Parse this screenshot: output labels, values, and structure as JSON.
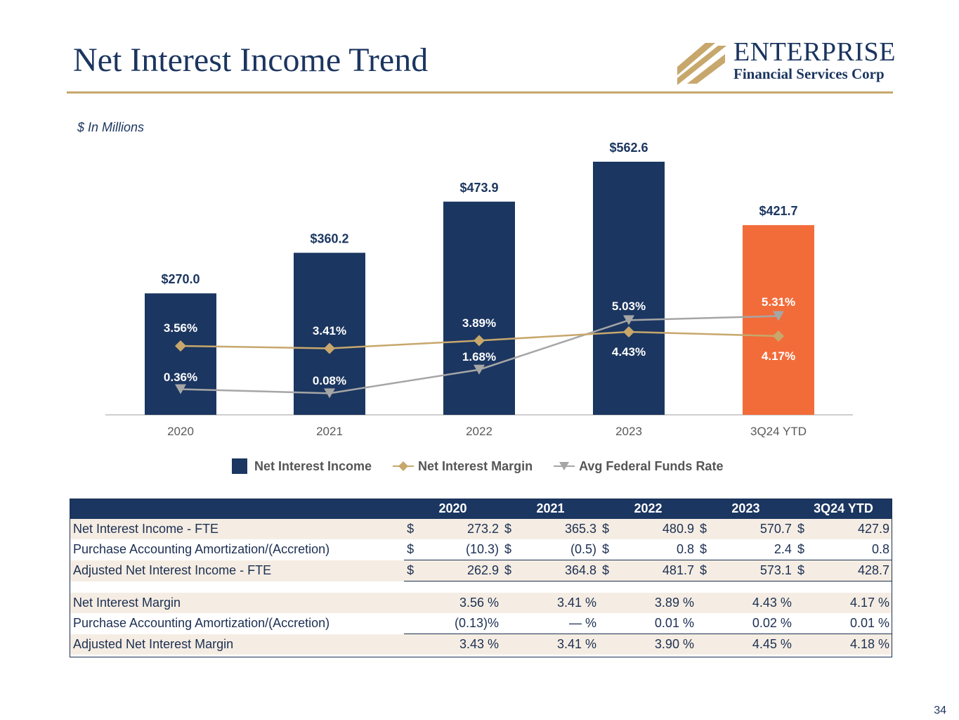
{
  "title": "Net Interest Income Trend",
  "logo": {
    "name": "ENTERPRISE",
    "subtitle": "Financial Services Corp"
  },
  "units_note": "$ In Millions",
  "colors": {
    "navy": "#1b3660",
    "orange": "#f26c3a",
    "gold": "#c7a76c",
    "gray": "#a6a6a6"
  },
  "chart_data": {
    "type": "bar",
    "categories": [
      "2020",
      "2021",
      "2022",
      "2023",
      "3Q24 YTD"
    ],
    "series": [
      {
        "name": "Net Interest Income",
        "kind": "bar",
        "values": [
          270.0,
          360.2,
          473.9,
          562.6,
          421.7
        ],
        "labels": [
          "$270.0",
          "$360.2",
          "$473.9",
          "$562.6",
          "$421.7"
        ]
      },
      {
        "name": "Net Interest Margin",
        "kind": "line",
        "values": [
          3.56,
          3.41,
          3.89,
          4.43,
          4.17
        ],
        "labels": [
          "3.56%",
          "3.41%",
          "3.89%",
          "4.43%",
          "4.17%"
        ]
      },
      {
        "name": "Avg Federal Funds Rate",
        "kind": "line",
        "values": [
          0.36,
          0.08,
          1.68,
          5.03,
          5.31
        ],
        "labels": [
          "0.36%",
          "0.08%",
          "1.68%",
          "5.03%",
          "5.31%"
        ]
      }
    ],
    "highlight_category": "3Q24 YTD",
    "ylim_bars": [
      0,
      600
    ],
    "legend_position": "bottom"
  },
  "table": {
    "headers": [
      "2020",
      "2021",
      "2022",
      "2023",
      "3Q24 YTD"
    ],
    "income_rows": [
      {
        "label": "Net Interest Income - FTE",
        "values": [
          "273.2",
          "365.3",
          "480.9",
          "570.7",
          "427.9"
        ]
      },
      {
        "label": "Purchase Accounting Amortization/(Accretion)",
        "values": [
          "(10.3)",
          "(0.5)",
          "0.8",
          "2.4",
          "0.8"
        ]
      },
      {
        "label": "Adjusted Net Interest Income - FTE",
        "values": [
          "262.9",
          "364.8",
          "481.7",
          "573.1",
          "428.7"
        ]
      }
    ],
    "currency": "$",
    "margin_rows": [
      {
        "label": "Net Interest Margin",
        "values": [
          "3.56 %",
          "3.41 %",
          "3.89 %",
          "4.43 %",
          "4.17 %"
        ]
      },
      {
        "label": "Purchase Accounting Amortization/(Accretion)",
        "values": [
          "(0.13)%",
          "— %",
          "0.01 %",
          "0.02 %",
          "0.01 %"
        ]
      },
      {
        "label": "Adjusted Net Interest Margin",
        "values": [
          "3.43 %",
          "3.41 %",
          "3.90 %",
          "4.45 %",
          "4.18 %"
        ]
      }
    ]
  },
  "page_number": "34"
}
